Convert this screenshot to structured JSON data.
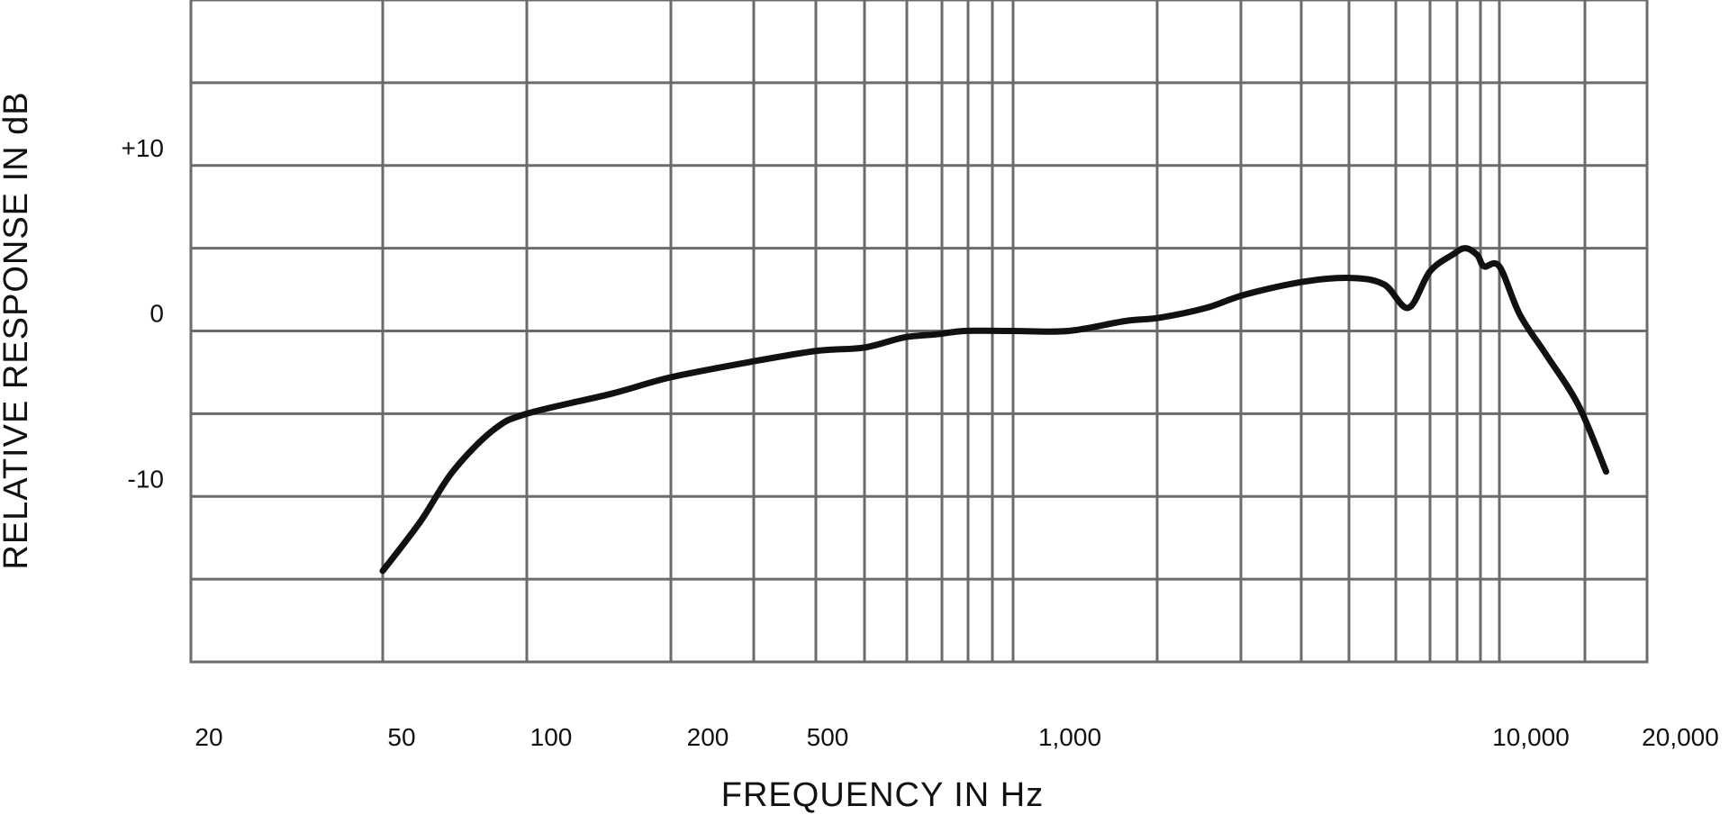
{
  "chart_data": {
    "type": "line",
    "xlabel": "FREQUENCY IN Hz",
    "ylabel": "RELATIVE RESPONSE IN dB",
    "x_tick_labels": [
      "20",
      "50",
      "100",
      "200",
      "500",
      "1,000",
      "10,000",
      "20,000"
    ],
    "y_tick_labels": [
      "+10",
      "0",
      "-10"
    ],
    "grid": true,
    "ylim": [
      -20,
      20
    ],
    "series": [
      {
        "values": [
          {
            "x": 50,
            "y": -14.5
          },
          {
            "x": 60,
            "y": -11.5
          },
          {
            "x": 70,
            "y": -8.5
          },
          {
            "x": 85,
            "y": -6.0
          },
          {
            "x": 100,
            "y": -5.0
          },
          {
            "x": 150,
            "y": -3.8
          },
          {
            "x": 200,
            "y": -2.8
          },
          {
            "x": 300,
            "y": -1.8
          },
          {
            "x": 400,
            "y": -1.2
          },
          {
            "x": 500,
            "y": -1.0
          },
          {
            "x": 600,
            "y": -0.4
          },
          {
            "x": 700,
            "y": -0.2
          },
          {
            "x": 800,
            "y": 0.0
          },
          {
            "x": 1000,
            "y": 0.0
          },
          {
            "x": 1300,
            "y": 0.0
          },
          {
            "x": 1700,
            "y": 0.6
          },
          {
            "x": 2000,
            "y": 0.8
          },
          {
            "x": 2500,
            "y": 1.4
          },
          {
            "x": 3000,
            "y": 2.2
          },
          {
            "x": 4000,
            "y": 3.0
          },
          {
            "x": 5000,
            "y": 3.2
          },
          {
            "x": 5800,
            "y": 2.8
          },
          {
            "x": 6500,
            "y": 1.4
          },
          {
            "x": 7200,
            "y": 3.6
          },
          {
            "x": 8000,
            "y": 4.6
          },
          {
            "x": 8500,
            "y": 5.0
          },
          {
            "x": 9000,
            "y": 4.6
          },
          {
            "x": 9300,
            "y": 3.9
          },
          {
            "x": 10000,
            "y": 3.9
          },
          {
            "x": 11000,
            "y": 1.0
          },
          {
            "x": 12500,
            "y": -1.5
          },
          {
            "x": 14500,
            "y": -4.5
          },
          {
            "x": 16500,
            "y": -8.5
          }
        ]
      }
    ]
  }
}
